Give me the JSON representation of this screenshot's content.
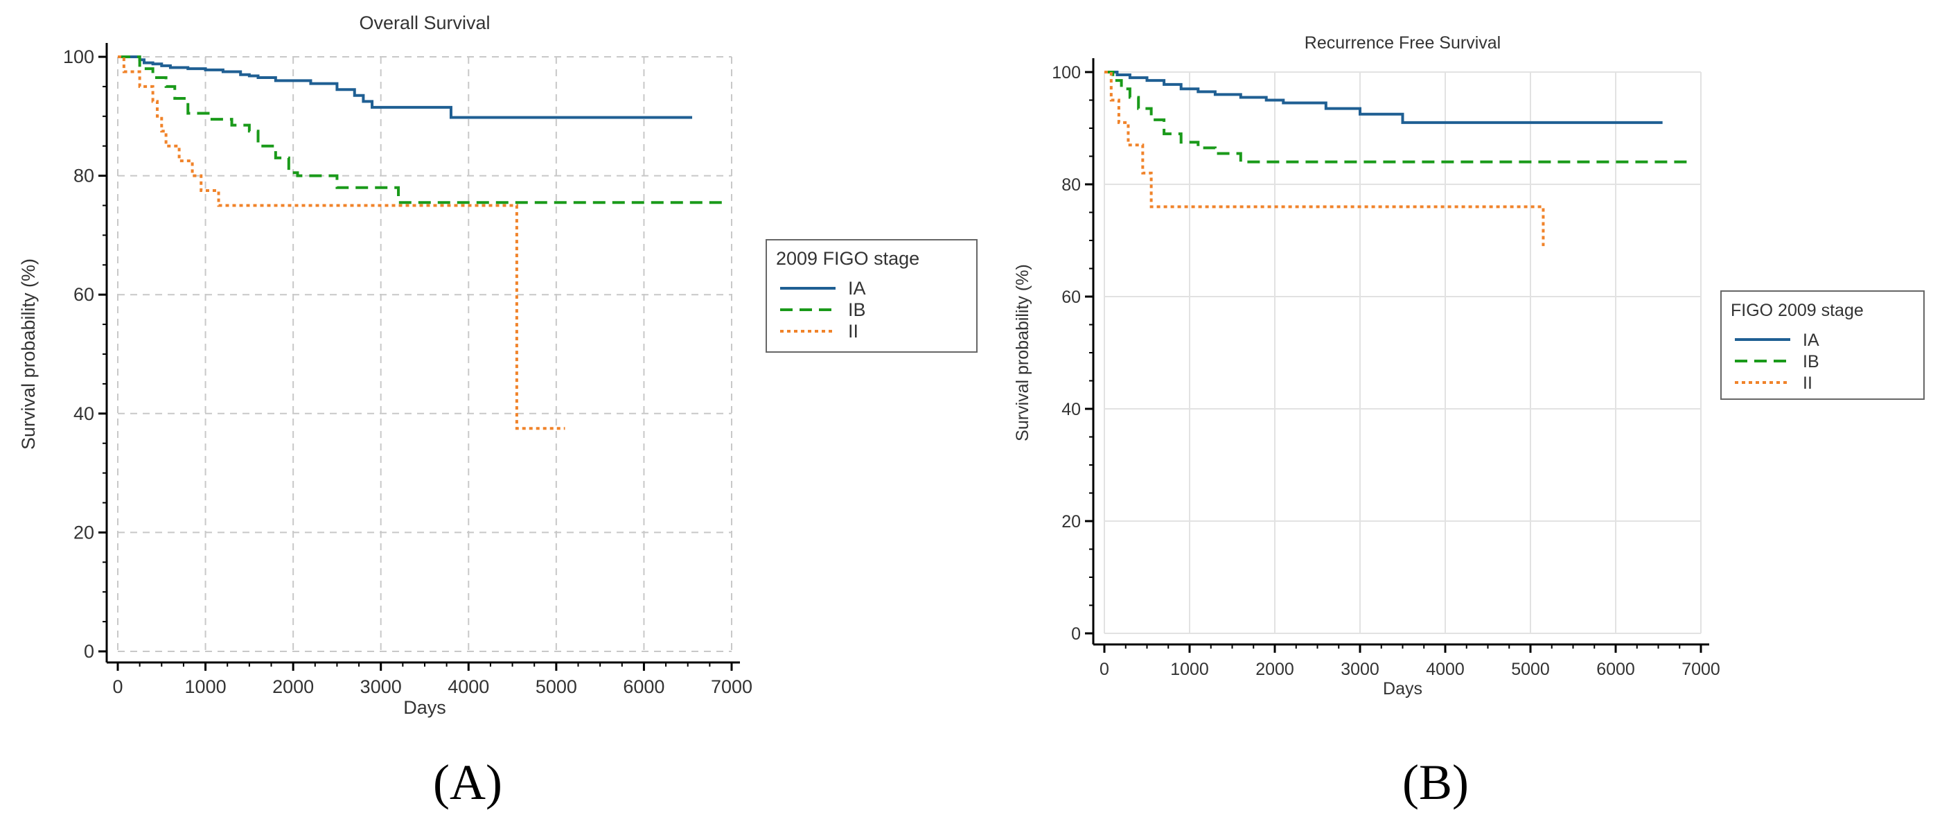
{
  "figure": {
    "panel_a_label": "(A)",
    "panel_b_label": "(B)"
  },
  "chart_data": [
    {
      "type": "line",
      "subtype": "kaplan-meier",
      "title": "Overall Survival",
      "xlabel": "Days",
      "ylabel": "Survival probability (%)",
      "xlim": [
        0,
        7000
      ],
      "ylim": [
        0,
        100
      ],
      "xticks": [
        0,
        1000,
        2000,
        3000,
        4000,
        5000,
        6000,
        7000
      ],
      "yticks": [
        0,
        20,
        40,
        60,
        80,
        100
      ],
      "grid": true,
      "grid_style": "dashed",
      "legend": {
        "title": "2009 FIGO stage",
        "placement": "right"
      },
      "series": [
        {
          "name": "IA",
          "color": "#1f5f93",
          "dash": "solid",
          "x": [
            0,
            250,
            300,
            400,
            500,
            600,
            800,
            1000,
            1200,
            1400,
            1500,
            1600,
            1800,
            2000,
            2200,
            2400,
            2500,
            2600,
            2700,
            2800,
            2900,
            3300,
            3800,
            6550
          ],
          "y": [
            100,
            99.5,
            99,
            98.8,
            98.5,
            98.2,
            98,
            97.8,
            97.5,
            97,
            96.8,
            96.5,
            96,
            96,
            95.5,
            95.5,
            94.5,
            94.5,
            93.5,
            92.5,
            91.5,
            91.5,
            89.8,
            89.8
          ]
        },
        {
          "name": "IB",
          "color": "#1a9a1a",
          "dash": "dashed",
          "x": [
            0,
            250,
            400,
            550,
            650,
            800,
            1050,
            1300,
            1500,
            1600,
            1800,
            1950,
            2050,
            2500,
            3200,
            6900
          ],
          "y": [
            100,
            98,
            96.5,
            95,
            93,
            90.5,
            89.5,
            88.5,
            87.5,
            85,
            83,
            80.5,
            80,
            78,
            75.5,
            75.5
          ]
        },
        {
          "name": "II",
          "color": "#f0832a",
          "dash": "dotted",
          "x": [
            0,
            70,
            250,
            400,
            450,
            500,
            550,
            600,
            700,
            850,
            950,
            1050,
            1150,
            4450,
            4550,
            5100
          ],
          "y": [
            100,
            97.5,
            95,
            92.5,
            90,
            87.5,
            85,
            85,
            82.5,
            80,
            77.5,
            77.5,
            75,
            75,
            37.5,
            37.5
          ]
        }
      ]
    },
    {
      "type": "line",
      "subtype": "kaplan-meier",
      "title": "Recurrence Free Survival",
      "xlabel": "Days",
      "ylabel": "Survival probability (%)",
      "xlim": [
        0,
        7000
      ],
      "ylim": [
        0,
        100
      ],
      "xticks": [
        0,
        1000,
        2000,
        3000,
        4000,
        5000,
        6000,
        7000
      ],
      "yticks": [
        0,
        20,
        40,
        60,
        80,
        100
      ],
      "grid": true,
      "grid_style": "solid-light",
      "legend": {
        "title": "FIGO 2009 stage",
        "placement": "right"
      },
      "series": [
        {
          "name": "IA",
          "color": "#1f5f93",
          "dash": "solid",
          "x": [
            0,
            150,
            300,
            500,
            700,
            900,
            1100,
            1300,
            1600,
            1900,
            2100,
            2600,
            3000,
            3500,
            6550
          ],
          "y": [
            100,
            99.5,
            99,
            98.5,
            97.8,
            97,
            96.5,
            96,
            95.5,
            95,
            94.5,
            93.5,
            92.5,
            91,
            91
          ]
        },
        {
          "name": "IB",
          "color": "#1a9a1a",
          "dash": "dashed",
          "x": [
            0,
            100,
            200,
            300,
            400,
            550,
            700,
            900,
            1100,
            1300,
            1600,
            6900
          ],
          "y": [
            100,
            98.5,
            97,
            95.5,
            93.5,
            91.5,
            89,
            87.5,
            86.5,
            85.5,
            84,
            84
          ]
        },
        {
          "name": "II",
          "color": "#f0832a",
          "dash": "dotted",
          "x": [
            0,
            80,
            170,
            280,
            400,
            450,
            550,
            3050,
            5150
          ],
          "y": [
            100,
            95,
            91,
            87,
            87,
            82,
            76,
            76,
            69
          ]
        }
      ]
    }
  ]
}
